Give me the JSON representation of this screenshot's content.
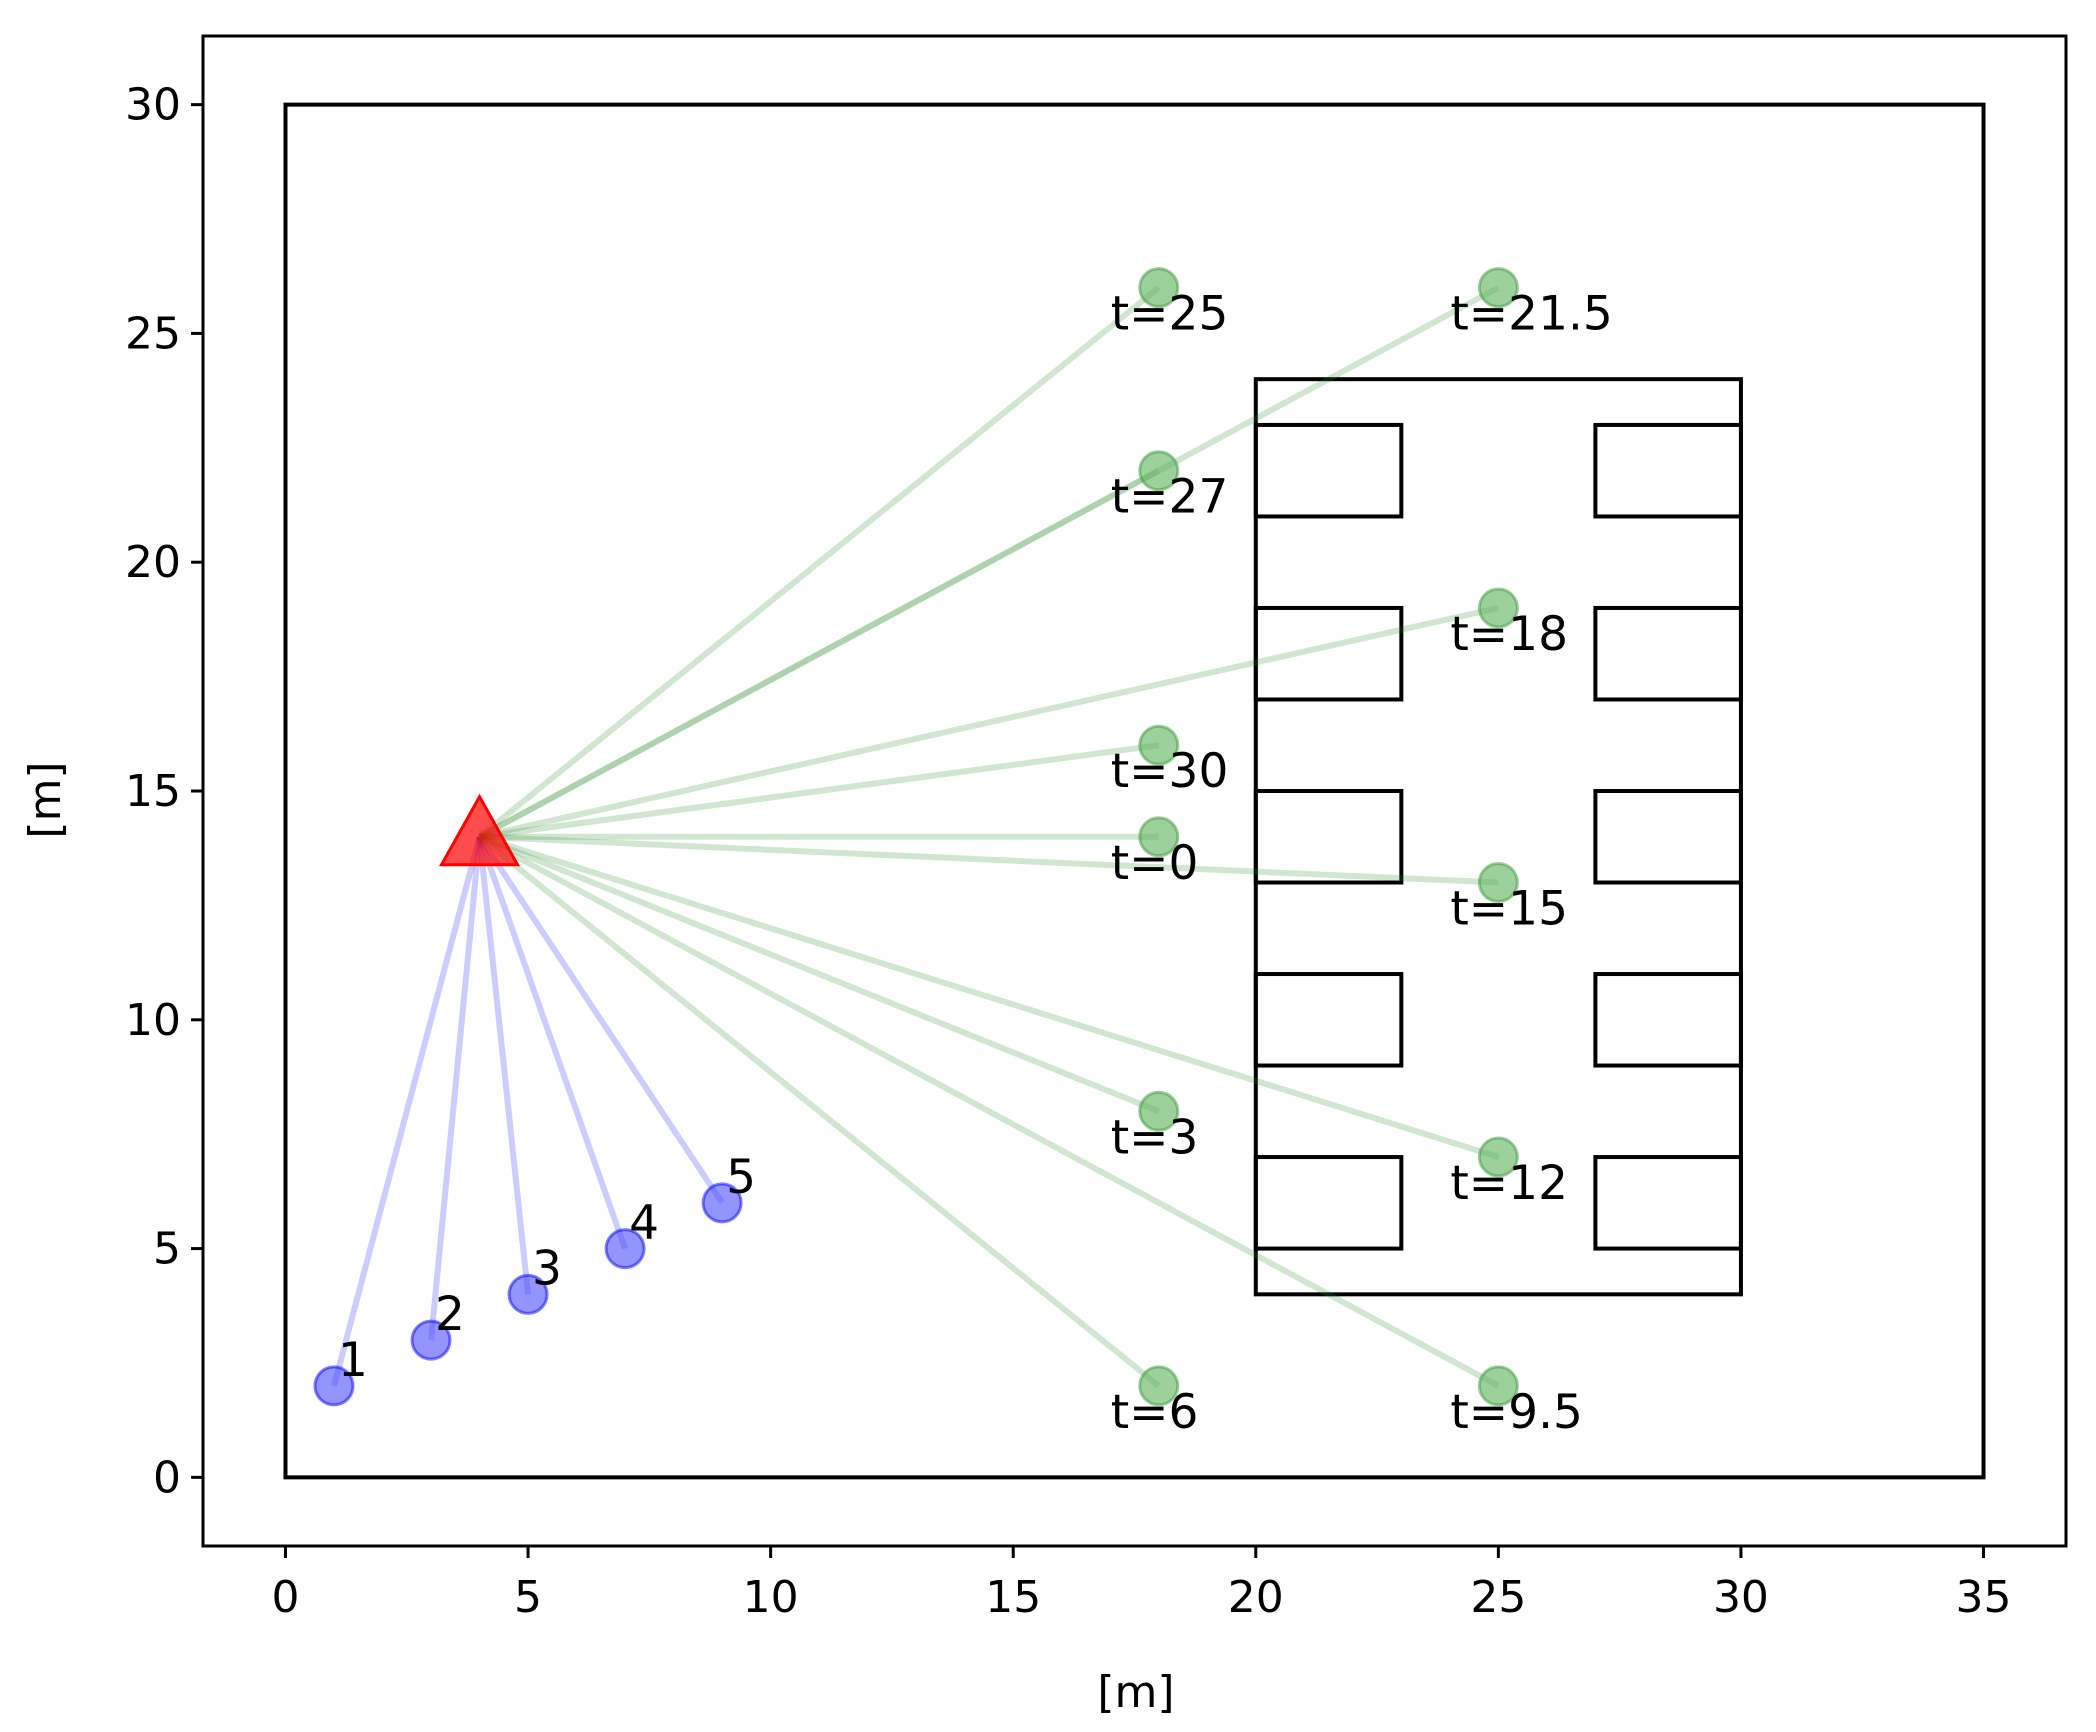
{
  "colors": {
    "axes": "#000000",
    "walls": "#000000",
    "anchor": "#ff0000",
    "agent_fill": "#4d4dff",
    "agent_edge": "#0000ff",
    "target_fill": "#5ab25a",
    "target_edge": "#3c9a3c",
    "link_blue": "#0000ff",
    "link_green": "#2e8b2e"
  },
  "chart_data": {
    "type": "scatter",
    "xlabel": "[m]",
    "ylabel": "[m]",
    "xlim": [
      -1.7,
      36.7
    ],
    "ylim": [
      -1.5,
      31.5
    ],
    "xticks": [
      0,
      5,
      10,
      15,
      20,
      25,
      30,
      35
    ],
    "yticks": [
      0,
      5,
      10,
      15,
      20,
      25,
      30
    ],
    "grid": false,
    "anchor": {
      "x": 4,
      "y": 14,
      "marker": "triangle"
    },
    "agents": [
      {
        "label": "1",
        "x": 1,
        "y": 2
      },
      {
        "label": "2",
        "x": 3,
        "y": 3
      },
      {
        "label": "3",
        "x": 5,
        "y": 4
      },
      {
        "label": "4",
        "x": 7,
        "y": 5
      },
      {
        "label": "5",
        "x": 9,
        "y": 6
      }
    ],
    "targets": [
      {
        "label": "t=0",
        "x": 18,
        "y": 14
      },
      {
        "label": "t=3",
        "x": 18,
        "y": 8
      },
      {
        "label": "t=6",
        "x": 18,
        "y": 2
      },
      {
        "label": "t=9.5",
        "x": 25,
        "y": 2
      },
      {
        "label": "t=12",
        "x": 25,
        "y": 7
      },
      {
        "label": "t=15",
        "x": 25,
        "y": 13
      },
      {
        "label": "t=18",
        "x": 25,
        "y": 19
      },
      {
        "label": "t=21.5",
        "x": 25,
        "y": 26
      },
      {
        "label": "t=25",
        "x": 18,
        "y": 26
      },
      {
        "label": "t=27",
        "x": 18,
        "y": 22
      },
      {
        "label": "t=30",
        "x": 18,
        "y": 16
      }
    ],
    "walls": [
      {
        "x": 0,
        "y": 0,
        "w": 35,
        "h": 30
      },
      {
        "x": 20,
        "y": 4,
        "w": 10,
        "h": 20
      },
      {
        "x": 20,
        "y": 21,
        "w": 3,
        "h": 2
      },
      {
        "x": 20,
        "y": 17,
        "w": 3,
        "h": 2
      },
      {
        "x": 20,
        "y": 13,
        "w": 3,
        "h": 2
      },
      {
        "x": 20,
        "y": 9,
        "w": 3,
        "h": 2
      },
      {
        "x": 20,
        "y": 5,
        "w": 3,
        "h": 2
      },
      {
        "x": 27,
        "y": 21,
        "w": 3,
        "h": 2
      },
      {
        "x": 27,
        "y": 17,
        "w": 3,
        "h": 2
      },
      {
        "x": 27,
        "y": 13,
        "w": 3,
        "h": 2
      },
      {
        "x": 27,
        "y": 9,
        "w": 3,
        "h": 2
      },
      {
        "x": 27,
        "y": 5,
        "w": 3,
        "h": 2
      }
    ]
  }
}
